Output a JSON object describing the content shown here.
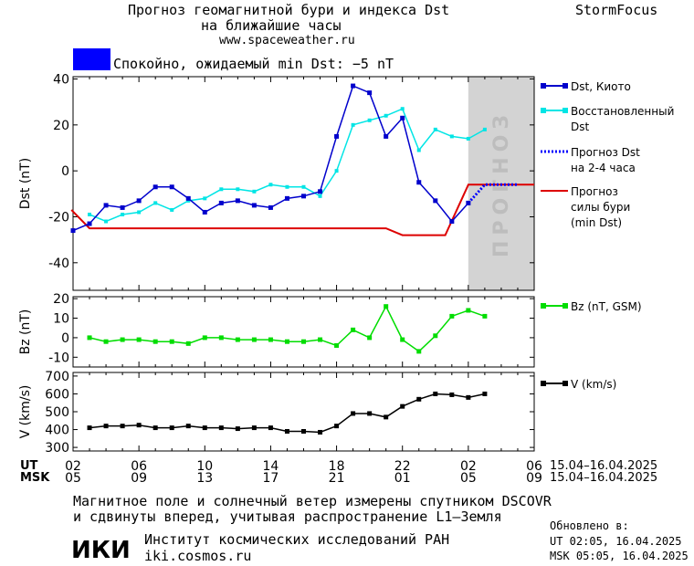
{
  "header": {
    "title_line1": "Прогноз геомагнитной бури и индекса Dst",
    "title_line2": "на ближайшие часы",
    "url": "www.spaceweather.ru",
    "brand": "StormFocus",
    "status_color": "#0000ff",
    "status_text": "Спокойно, ожидаемый min Dst: −5 nT"
  },
  "forecast_label": "ПРОГНОЗ",
  "legend": {
    "dst_kyoto": "Dst, Киото",
    "restored_line1": "Восстановленный",
    "restored_line2": "Dst",
    "forecast_dst_line1": "Прогноз Dst",
    "forecast_dst_line2": "на 2-4 часа",
    "storm_line1": "Прогноз",
    "storm_line2": "силы бури",
    "storm_line3": "(min Dst)",
    "bz": "Bz (nT, GSM)",
    "v": "V (km/s)"
  },
  "colors": {
    "dst_kyoto": "#0000cc",
    "restored": "#00e5e5",
    "forecast": "#0000ff",
    "storm": "#dd0000",
    "bz": "#00dd00",
    "v": "#000000",
    "forecast_zone": "#d3d3d3"
  },
  "time_axis": {
    "ut_label": "UT",
    "msk_label": "MSK",
    "ut_ticks": [
      "02",
      "06",
      "10",
      "14",
      "18",
      "22",
      "02",
      "06"
    ],
    "msk_ticks": [
      "05",
      "09",
      "13",
      "17",
      "21",
      "01",
      "05",
      "09"
    ],
    "ut_range": "15.04–16.04.2025",
    "msk_range": "15.04–16.04.2025"
  },
  "footer": {
    "note_line1": "Магнитное поле и солнечный ветер измерены спутником DSCOVR",
    "note_line2": "и сдвинуты вперед, учитывая распространение L1–Земля",
    "institute": "Институт космических исследований РАН",
    "site": "iki.cosmos.ru",
    "logo_text": "ИКИ",
    "updated_label": "Обновлено в:",
    "updated_ut": "UT   02:05, 16.04.2025",
    "updated_msk": "MSK 05:05, 16.04.2025"
  },
  "chart_data": [
    {
      "type": "line",
      "ylabel": "Dst (nT)",
      "x_unit": "hours UT from 02:00 15.04.2025",
      "xlim": [
        0,
        28
      ],
      "ylim": [
        -52,
        41
      ],
      "yticks": [
        -40,
        -20,
        0,
        20,
        40
      ],
      "forecast_zone": [
        24,
        28
      ],
      "series": [
        {
          "name": "Dst, Киото",
          "x": [
            0,
            1,
            2,
            3,
            4,
            5,
            6,
            7,
            8,
            9,
            10,
            11,
            12,
            13,
            14,
            15,
            16,
            17,
            18,
            19,
            20,
            21,
            22,
            23,
            24
          ],
          "values": [
            -26,
            -23,
            -15,
            -16,
            -13,
            -7,
            -7,
            -12,
            -18,
            -14,
            -13,
            -15,
            -16,
            -12,
            -11,
            -9,
            15,
            37,
            34,
            15,
            23,
            -5,
            -13,
            -22,
            -14
          ]
        },
        {
          "name": "Восстановленный Dst",
          "x": [
            1,
            2,
            3,
            4,
            5,
            6,
            7,
            8,
            9,
            10,
            11,
            12,
            13,
            14,
            15,
            16,
            17,
            18,
            19,
            20,
            21,
            22,
            23,
            24,
            25
          ],
          "values": [
            -19,
            -22,
            -19,
            -18,
            -14,
            -17,
            -13,
            -12,
            -8,
            -8,
            -9,
            -6,
            -7,
            -7,
            -11,
            0,
            20,
            22,
            24,
            27,
            9,
            18,
            15,
            14,
            18
          ]
        },
        {
          "name": "Прогноз Dst на 2-4 часа",
          "x": [
            24,
            25,
            26,
            27
          ],
          "values": [
            -14,
            -6,
            -6,
            -6
          ]
        },
        {
          "name": "Прогноз силы бури (min Dst)",
          "x": [
            -0.1,
            1,
            19,
            20,
            22.6,
            24,
            28
          ],
          "values": [
            -17,
            -25,
            -25,
            -28,
            -28,
            -6,
            -6
          ]
        }
      ]
    },
    {
      "type": "line",
      "ylabel": "Bz (nT)",
      "xlim": [
        0,
        28
      ],
      "ylim": [
        -15,
        21
      ],
      "yticks": [
        -10,
        0,
        10,
        20
      ],
      "series": [
        {
          "name": "Bz (nT, GSM)",
          "x": [
            1,
            2,
            3,
            4,
            5,
            6,
            7,
            8,
            9,
            10,
            11,
            12,
            13,
            14,
            15,
            16,
            17,
            18,
            19,
            20,
            21,
            22,
            23,
            24,
            25
          ],
          "values": [
            0,
            -2,
            -1,
            -1,
            -2,
            -2,
            -3,
            0,
            0,
            -1,
            -1,
            -1,
            -2,
            -2,
            -1,
            -4,
            4,
            0,
            16,
            -1,
            -7,
            1,
            11,
            14,
            11
          ]
        }
      ]
    },
    {
      "type": "line",
      "ylabel": "V (km/s)",
      "xlim": [
        0,
        28
      ],
      "ylim": [
        280,
        720
      ],
      "yticks": [
        300,
        400,
        500,
        600,
        700
      ],
      "series": [
        {
          "name": "V (km/s)",
          "x": [
            1,
            2,
            3,
            4,
            5,
            6,
            7,
            8,
            9,
            10,
            11,
            12,
            13,
            14,
            15,
            16,
            17,
            18,
            19,
            20,
            21,
            22,
            23,
            24,
            25
          ],
          "values": [
            410,
            420,
            420,
            425,
            410,
            410,
            420,
            410,
            410,
            405,
            410,
            410,
            390,
            390,
            385,
            420,
            490,
            490,
            470,
            530,
            570,
            600,
            595,
            580,
            600
          ]
        }
      ]
    }
  ]
}
